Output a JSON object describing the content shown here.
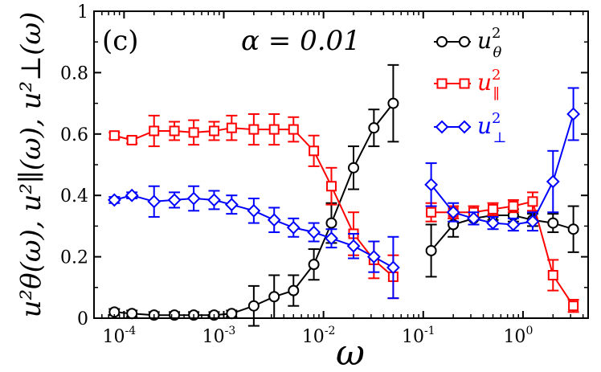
{
  "chart_data": {
    "type": "line",
    "title": "",
    "panel_label": "(c)",
    "annotation": "α = 0.01",
    "xlabel": "ω",
    "ylabel": "u²θ(ω), u²∥(ω), u²⊥(ω)",
    "xscale": "log",
    "xlim": [
      5e-05,
      4.5
    ],
    "ylim": [
      0,
      1
    ],
    "x_ticks": [
      {
        "value": 0.0001,
        "base": "10",
        "exp": "-4"
      },
      {
        "value": 0.001,
        "base": "10",
        "exp": "-3"
      },
      {
        "value": 0.01,
        "base": "10",
        "exp": "-2"
      },
      {
        "value": 0.1,
        "base": "10",
        "exp": "-1"
      },
      {
        "value": 1,
        "base": "10",
        "exp": "0"
      }
    ],
    "y_ticks": [
      "0",
      "0.2",
      "0.4",
      "0.6",
      "0.8",
      "1"
    ],
    "legend_position": "top-right",
    "series": [
      {
        "name": "u²θ",
        "base": "u",
        "sup": "2",
        "sub": "θ",
        "color": "#000000",
        "marker": "circle",
        "segments": [
          {
            "x": [
              8e-05,
              0.00012,
              0.0002,
              0.00032,
              0.0005,
              0.0008,
              0.0012,
              0.002,
              0.0032,
              0.005,
              0.008,
              0.012,
              0.02,
              0.032,
              0.05
            ],
            "y": [
              0.02,
              0.015,
              0.01,
              0.01,
              0.01,
              0.01,
              0.015,
              0.04,
              0.07,
              0.09,
              0.175,
              0.31,
              0.49,
              0.62,
              0.7
            ],
            "err": [
              0.01,
              0.01,
              0.01,
              0.01,
              0.01,
              0.01,
              0.01,
              0.065,
              0.07,
              0.05,
              0.05,
              0.065,
              0.07,
              0.06,
              0.125
            ]
          },
          {
            "x": [
              0.12,
              0.2,
              0.32,
              0.5,
              0.8,
              1.25,
              2.0,
              3.2
            ],
            "y": [
              0.22,
              0.305,
              0.325,
              0.335,
              0.335,
              0.32,
              0.31,
              0.29
            ],
            "err": [
              0.085,
              0.04,
              0.02,
              0.015,
              0.02,
              0.02,
              0.03,
              0.075
            ]
          }
        ]
      },
      {
        "name": "u²∥",
        "base": "u",
        "sup": "2",
        "sub": "∥",
        "color": "#ff0000",
        "marker": "square",
        "segments": [
          {
            "x": [
              8e-05,
              0.00012,
              0.0002,
              0.00032,
              0.0005,
              0.0008,
              0.0012,
              0.002,
              0.0032,
              0.005,
              0.008,
              0.012,
              0.02,
              0.032,
              0.05
            ],
            "y": [
              0.595,
              0.58,
              0.61,
              0.61,
              0.605,
              0.61,
              0.62,
              0.615,
              0.615,
              0.615,
              0.545,
              0.43,
              0.275,
              0.19,
              0.135
            ],
            "err": [
              0.01,
              0.01,
              0.05,
              0.03,
              0.04,
              0.03,
              0.04,
              0.05,
              0.05,
              0.04,
              0.05,
              0.06,
              0.07,
              0.06,
              0.07
            ]
          },
          {
            "x": [
              0.12,
              0.2,
              0.32,
              0.5,
              0.8,
              1.25,
              2.0,
              3.2
            ],
            "y": [
              0.345,
              0.345,
              0.345,
              0.355,
              0.365,
              0.38,
              0.14,
              0.04
            ],
            "err": [
              0.03,
              0.02,
              0.02,
              0.02,
              0.02,
              0.03,
              0.05,
              0.02
            ]
          }
        ]
      },
      {
        "name": "u²⊥",
        "base": "u",
        "sup": "2",
        "sub": "⊥",
        "color": "#0000ff",
        "marker": "diamond",
        "segments": [
          {
            "x": [
              8e-05,
              0.00012,
              0.0002,
              0.00032,
              0.0005,
              0.0008,
              0.0012,
              0.002,
              0.0032,
              0.005,
              0.008,
              0.012,
              0.02,
              0.032,
              0.05
            ],
            "y": [
              0.385,
              0.4,
              0.38,
              0.385,
              0.39,
              0.385,
              0.37,
              0.35,
              0.32,
              0.295,
              0.28,
              0.26,
              0.235,
              0.2,
              0.165
            ],
            "err": [
              0.01,
              0.01,
              0.05,
              0.025,
              0.04,
              0.03,
              0.03,
              0.04,
              0.04,
              0.03,
              0.03,
              0.03,
              0.04,
              0.05,
              0.1
            ]
          },
          {
            "x": [
              0.12,
              0.2,
              0.32,
              0.5,
              0.8,
              1.25,
              2.0,
              3.2
            ],
            "y": [
              0.435,
              0.345,
              0.325,
              0.31,
              0.305,
              0.315,
              0.445,
              0.665
            ],
            "err": [
              0.07,
              0.03,
              0.02,
              0.02,
              0.02,
              0.03,
              0.1,
              0.085
            ]
          }
        ]
      }
    ]
  }
}
